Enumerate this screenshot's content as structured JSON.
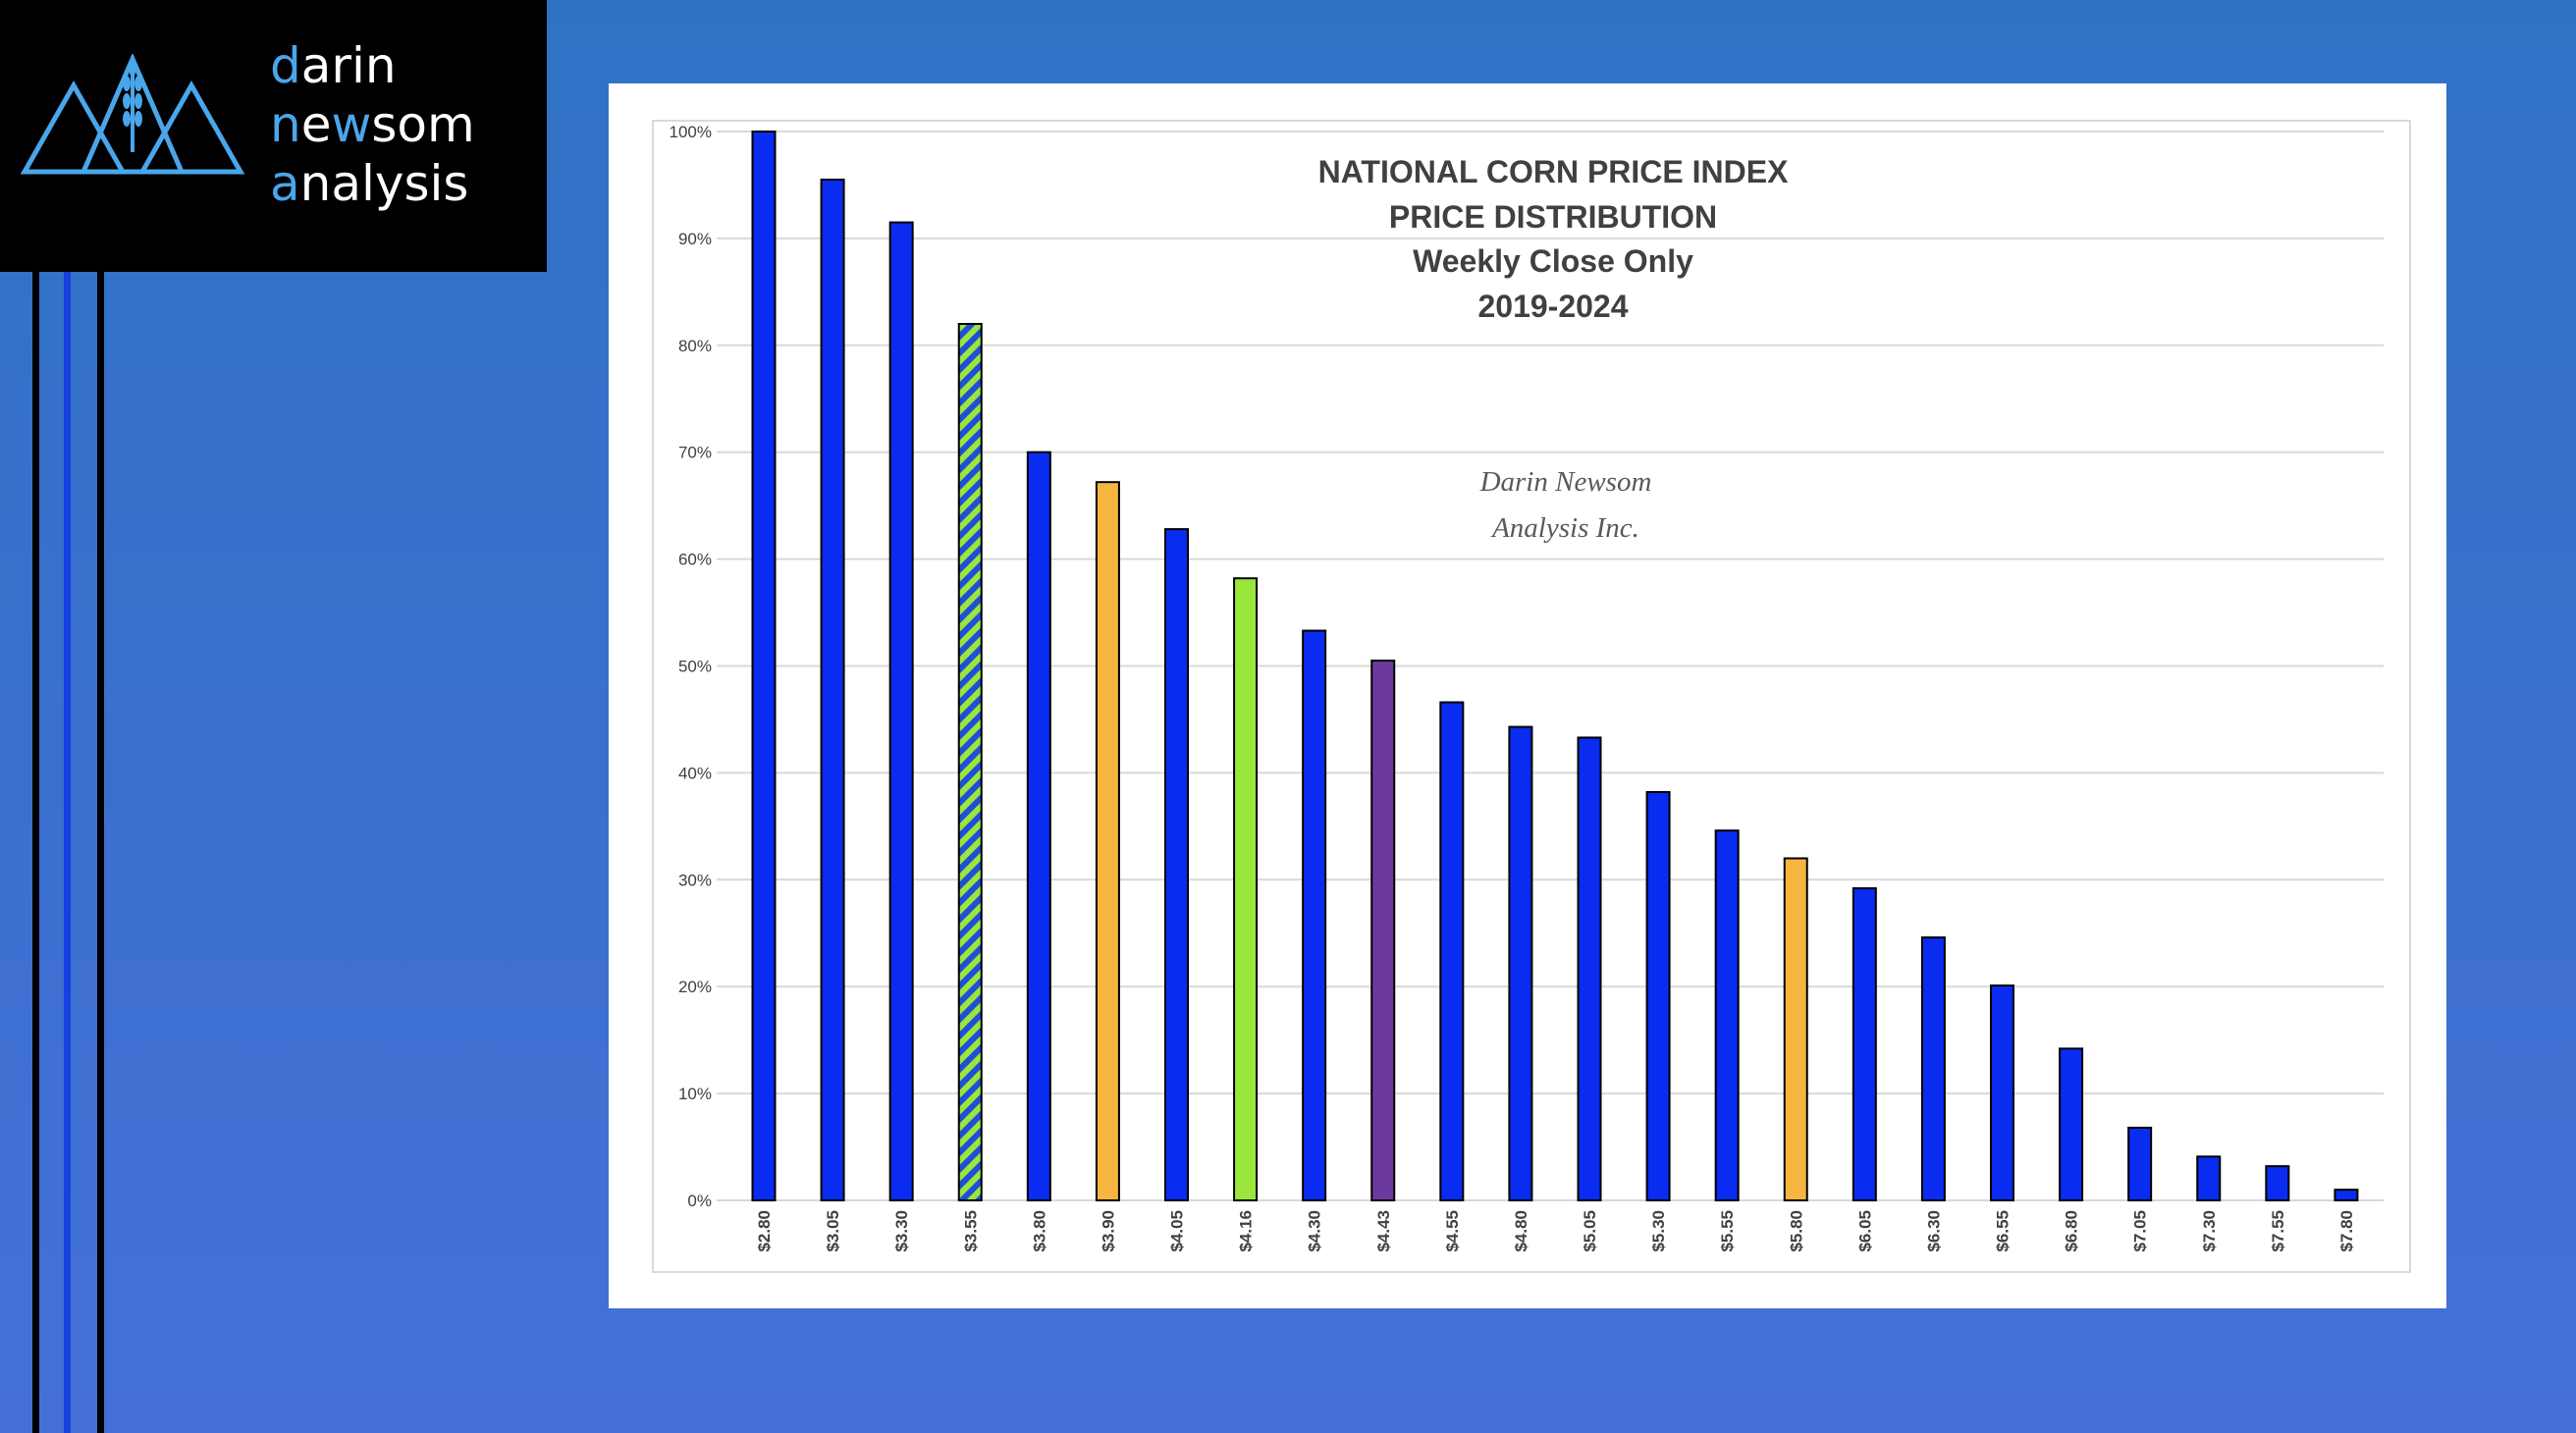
{
  "brand": {
    "line1_accent": "d",
    "line1_rest": "arin",
    "line2_accent_a": "n",
    "line2_mid": "e",
    "line2_accent_b": "w",
    "line2_rest": "som",
    "line3_accent": "a",
    "line3_rest": "nalysis",
    "logo_icon": "mountains-wheat-icon",
    "accent_color": "#4aa6ea"
  },
  "colors": {
    "blue": "#0a2cf0",
    "orange": "#f5b53f",
    "green": "#9be63c",
    "purple": "#6b3a9c",
    "hatch_a": "#9be63c",
    "hatch_b": "#1f4fd8"
  },
  "chart_data": {
    "type": "bar",
    "title_lines": [
      "NATIONAL CORN PRICE INDEX",
      "PRICE DISTRIBUTION",
      "Weekly Close Only",
      "2019-2024"
    ],
    "watermark_lines": [
      "Darin Newsom",
      "Analysis Inc."
    ],
    "xlabel": "",
    "ylabel": "",
    "ylim": [
      0,
      100
    ],
    "y_ticks": [
      "0%",
      "10%",
      "20%",
      "30%",
      "40%",
      "50%",
      "60%",
      "70%",
      "80%",
      "90%",
      "100%"
    ],
    "grid": true,
    "categories": [
      "$2.80",
      "$3.05",
      "$3.30",
      "$3.55",
      "$3.80",
      "$3.90",
      "$4.05",
      "$4.16",
      "$4.30",
      "$4.43",
      "$4.55",
      "$4.80",
      "$5.05",
      "$5.30",
      "$5.55",
      "$5.80",
      "$6.05",
      "$6.30",
      "$6.55",
      "$6.80",
      "$7.05",
      "$7.30",
      "$7.55",
      "$7.80"
    ],
    "values": [
      100,
      95.5,
      91.5,
      82,
      70,
      67.2,
      62.8,
      58.2,
      53.3,
      50.5,
      46.6,
      44.3,
      43.3,
      38.2,
      34.6,
      32,
      29.2,
      24.6,
      20.1,
      14.2,
      6.8,
      4.1,
      3.2,
      1
    ],
    "bar_colors": [
      "blue",
      "blue",
      "blue",
      "hatch",
      "blue",
      "orange",
      "blue",
      "green",
      "blue",
      "purple",
      "blue",
      "blue",
      "blue",
      "blue",
      "blue",
      "orange",
      "blue",
      "blue",
      "blue",
      "blue",
      "blue",
      "blue",
      "blue",
      "blue"
    ]
  }
}
